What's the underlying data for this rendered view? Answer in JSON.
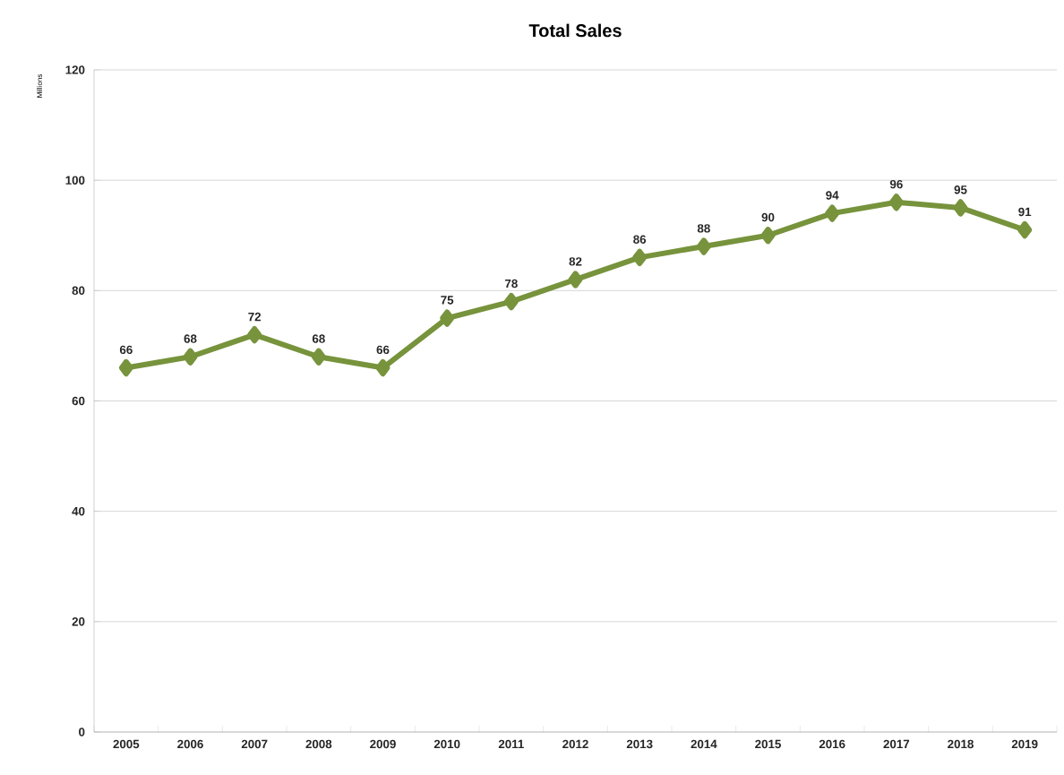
{
  "chart_data": {
    "type": "line",
    "title": "Total Sales",
    "ylabel": "Millions",
    "categories": [
      "2005",
      "2006",
      "2007",
      "2008",
      "2009",
      "2010",
      "2011",
      "2012",
      "2013",
      "2014",
      "2015",
      "2016",
      "2017",
      "2018",
      "2019"
    ],
    "values": [
      66,
      68,
      72,
      68,
      66,
      75,
      78,
      82,
      86,
      88,
      90,
      94,
      96,
      95,
      91
    ],
    "color": "#77933c",
    "marker": "diamond",
    "line_style": "solid",
    "ylim": [
      0,
      120
    ],
    "yticks": [
      0,
      20,
      40,
      60,
      80,
      100,
      120
    ],
    "grid": "y",
    "data_labels": true
  }
}
